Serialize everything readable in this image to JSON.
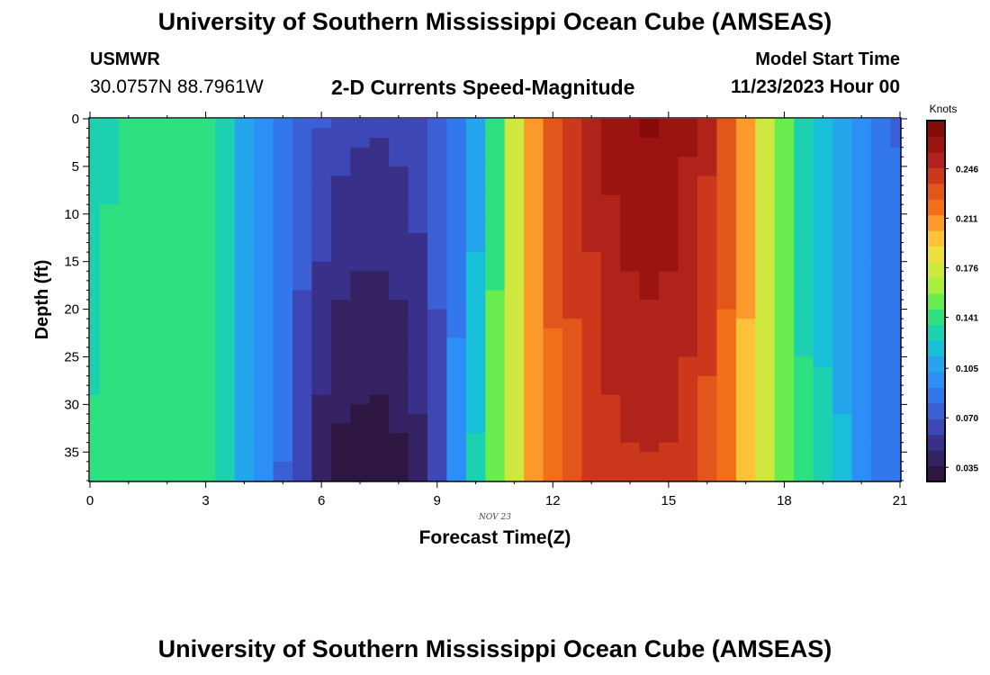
{
  "header": {
    "title": "University of Southern Mississippi Ocean Cube (AMSEAS)",
    "station": "USMWR",
    "coords": "30.0757N  88.7961W",
    "subtitle": "2-D Currents Speed-Magnitude",
    "model_start_label": "Model Start Time",
    "model_start_value": "11/23/2023 Hour 00"
  },
  "footer": {
    "title": "University of Southern Mississippi Ocean Cube (AMSEAS)"
  },
  "chart_data": {
    "type": "heatmap",
    "title": "2-D Currents Speed-Magnitude",
    "xlabel": "Forecast Time(Z)",
    "ylabel": "Depth (ft)",
    "date_label": "NOV 23",
    "xlim": [
      0,
      21
    ],
    "ylim": [
      38,
      0
    ],
    "xticks": [
      0,
      3,
      6,
      9,
      12,
      15,
      18,
      21
    ],
    "yticks": [
      0,
      5,
      10,
      15,
      20,
      25,
      30,
      35
    ],
    "colorbar": {
      "label": "Knots",
      "ticks": [
        "0.035",
        "0.070",
        "0.105",
        "0.141",
        "0.176",
        "0.211",
        "0.246"
      ],
      "range": [
        0.025,
        0.28
      ]
    },
    "palette": [
      "#2d1642",
      "#342262",
      "#393089",
      "#3d47b5",
      "#3b5fd5",
      "#3278ec",
      "#2b8ff5",
      "#25a5ec",
      "#18bfd8",
      "#1bd1b0",
      "#2ee080",
      "#68ec4e",
      "#a8f03e",
      "#cee83f",
      "#eee03c",
      "#fbc23a",
      "#fb9a2a",
      "#f26f1a",
      "#e2561b",
      "#cc381c",
      "#b0231a",
      "#9a1411",
      "#850c08"
    ],
    "x": [
      0,
      0.5,
      1,
      1.5,
      2,
      2.5,
      3,
      3.5,
      4,
      4.5,
      5,
      5.5,
      6,
      6.5,
      7,
      7.5,
      8,
      8.5,
      9,
      9.5,
      10,
      10.5,
      11,
      11.5,
      12,
      12.5,
      13,
      13.5,
      14,
      14.5,
      15,
      15.5,
      16,
      16.5,
      17,
      17.5,
      18,
      18.5,
      19,
      19.5,
      20,
      20.5,
      21
    ],
    "surface_speed": [
      0.129,
      0.134,
      0.139,
      0.144,
      0.146,
      0.146,
      0.143,
      0.128,
      0.112,
      0.1,
      0.088,
      0.078,
      0.07,
      0.063,
      0.061,
      0.06,
      0.062,
      0.065,
      0.073,
      0.085,
      0.105,
      0.14,
      0.18,
      0.21,
      0.228,
      0.24,
      0.252,
      0.262,
      0.268,
      0.27,
      0.268,
      0.26,
      0.25,
      0.235,
      0.212,
      0.18,
      0.148,
      0.128,
      0.118,
      0.108,
      0.098,
      0.083,
      0.08
    ],
    "speed_at_38ft": [
      0.138,
      0.142,
      0.144,
      0.142,
      0.141,
      0.141,
      0.14,
      0.125,
      0.109,
      0.096,
      0.08,
      0.06,
      0.04,
      0.031,
      0.029,
      0.029,
      0.032,
      0.043,
      0.066,
      0.096,
      0.128,
      0.155,
      0.178,
      0.205,
      0.222,
      0.232,
      0.238,
      0.242,
      0.244,
      0.245,
      0.244,
      0.24,
      0.23,
      0.215,
      0.195,
      0.17,
      0.15,
      0.14,
      0.128,
      0.115,
      0.102,
      0.088,
      0.085
    ]
  }
}
